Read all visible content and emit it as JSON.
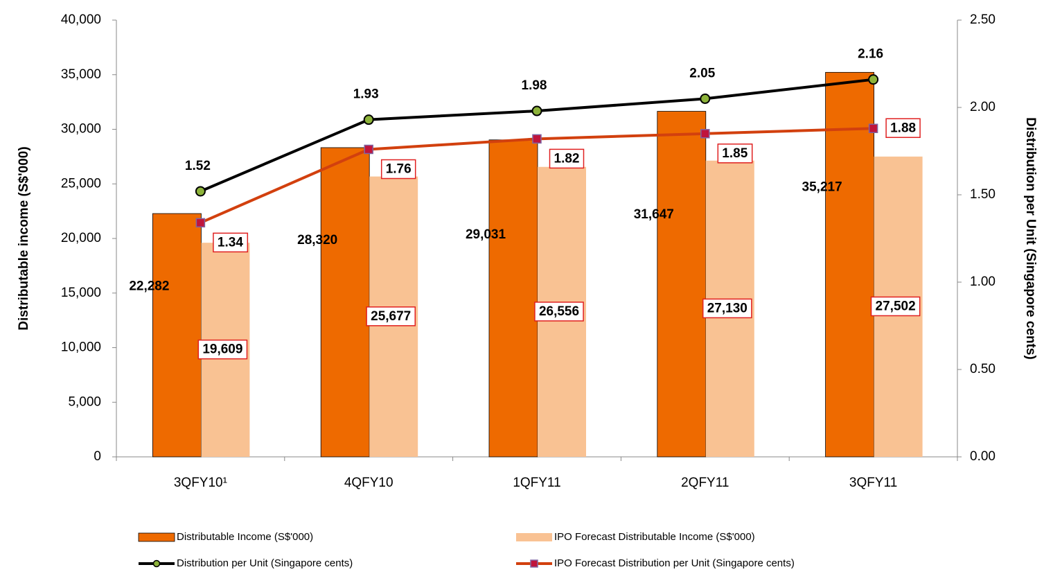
{
  "chart_data": {
    "type": "bar-line",
    "y_label": "Distributable income (S$'000)",
    "y2_label": "Distribution per Unit (Singapore cents)",
    "categories": [
      "3QFY10¹",
      "4QFY10",
      "1QFY11",
      "2QFY11",
      "3QFY11"
    ],
    "ylim": [
      0,
      40000
    ],
    "yticks": [
      0,
      {
        "value": 5000,
        "label": "5,000"
      },
      {
        "value": 10000,
        "label": "10,000"
      },
      {
        "value": 15000,
        "label": "15,000"
      },
      {
        "value": 20000,
        "label": "20,000"
      },
      {
        "value": 25000,
        "label": "25,000"
      },
      {
        "value": 30000,
        "label": "30,000"
      },
      {
        "value": 35000,
        "label": "35,000"
      },
      {
        "value": 40000,
        "label": "40,000"
      }
    ],
    "y2lim": [
      0,
      2.5
    ],
    "y2ticks": [
      {
        "value": 0,
        "label": "0.00"
      },
      {
        "value": 0.5,
        "label": "0.50"
      },
      {
        "value": 1,
        "label": "1.00"
      },
      {
        "value": 1.5,
        "label": "1.50"
      },
      {
        "value": 2,
        "label": "2.00"
      },
      {
        "value": 2.5,
        "label": "2.50"
      }
    ],
    "series": [
      {
        "name": "Distributable Income (S$'000)",
        "type": "bar",
        "color": "#ee6a00",
        "values": [
          22282,
          28320,
          29031,
          31647,
          35217
        ],
        "value_labels": [
          "22,282",
          "28,320",
          "29,031",
          "31,647",
          "35,217"
        ]
      },
      {
        "name": "IPO Forecast Distributable Income (S$'000)",
        "type": "bar",
        "color": "#f9c293",
        "values": [
          19609,
          25677,
          26556,
          27130,
          27502
        ],
        "value_labels": [
          "19,609",
          "25,677",
          "26,556",
          "27,130",
          "27,502"
        ]
      },
      {
        "name": "Distribution per Unit (Singapore cents)",
        "type": "line",
        "axis": "y2",
        "color": "#000000",
        "values": [
          1.52,
          1.93,
          1.98,
          2.05,
          2.16
        ]
      },
      {
        "name": "IPO Forecast Distribution per Unit (Singapore cents)",
        "type": "line",
        "axis": "y2",
        "color": "#d2400e",
        "values": [
          1.34,
          1.76,
          1.82,
          1.85,
          1.88
        ]
      }
    ]
  }
}
